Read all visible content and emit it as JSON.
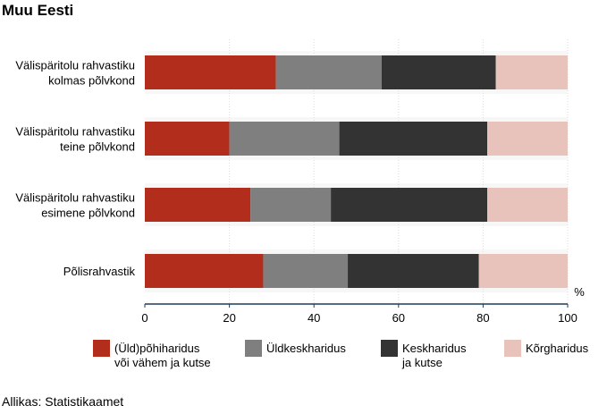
{
  "title": "Muu Eesti",
  "source": "Allikas: Statistikaamet",
  "chart_data": {
    "type": "bar",
    "orientation": "horizontal",
    "stacked": true,
    "categories": [
      [
        "Välispäritolu rahvastiku",
        "kolmas põlvkond"
      ],
      [
        "Välispäritolu rahvastiku",
        "teine põlvkond"
      ],
      [
        "Välispäritolu rahvastiku",
        "esimene põlvkond"
      ],
      [
        "Põlisrahvastik"
      ]
    ],
    "series": [
      {
        "name": [
          "(Üld)põhiharidus",
          "või vähem ja kutse"
        ],
        "color": "#b22d1c",
        "values": [
          31,
          20,
          25,
          28
        ]
      },
      {
        "name": [
          "Üldkeskharidus"
        ],
        "color": "#7f7f7f",
        "values": [
          25,
          26,
          19,
          20
        ]
      },
      {
        "name": [
          "Keskharidus",
          "ja kutse"
        ],
        "color": "#333333",
        "values": [
          27,
          35,
          37,
          31
        ]
      },
      {
        "name": [
          "Kõrgharidus"
        ],
        "color": "#e8c3bc",
        "values": [
          17,
          19,
          19,
          21
        ]
      }
    ],
    "xlim": [
      0,
      100
    ],
    "xticks": [
      0,
      20,
      40,
      60,
      80,
      100
    ],
    "unit": "%",
    "grid": "vertical",
    "legend": "bottom"
  }
}
